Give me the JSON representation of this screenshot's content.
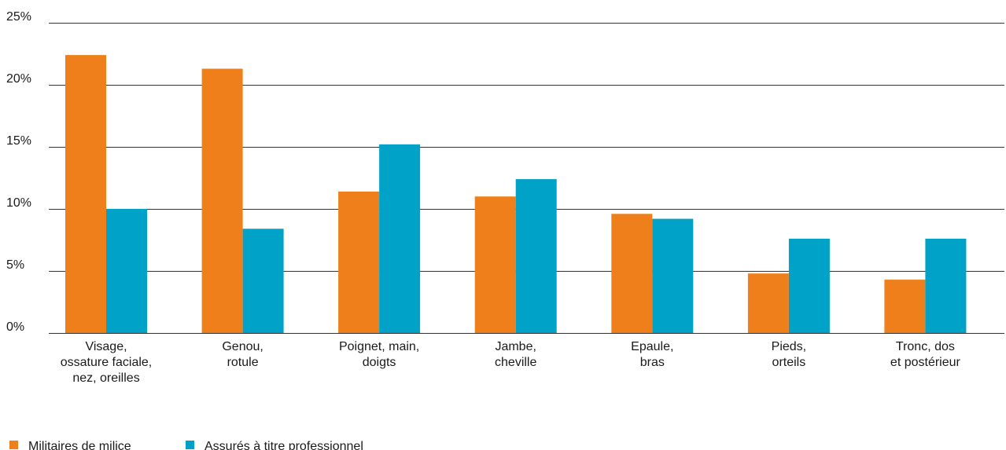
{
  "chart_data": {
    "type": "bar",
    "title": "",
    "xlabel": "",
    "ylabel": "",
    "ylim": [
      0,
      25
    ],
    "yticks": [
      0,
      5,
      10,
      15,
      20,
      25
    ],
    "ytick_labels": [
      "0%",
      "5%",
      "10%",
      "15%",
      "20%",
      "25%"
    ],
    "grid": true,
    "legend_position": "bottom-left",
    "categories": [
      [
        "Visage,",
        "ossature faciale,",
        "nez, oreilles"
      ],
      [
        "Genou,",
        "rotule"
      ],
      [
        "Poignet, main,",
        "doigts"
      ],
      [
        "Jambe,",
        "cheville"
      ],
      [
        "Epaule,",
        "bras"
      ],
      [
        "Pieds,",
        "orteils"
      ],
      [
        "Tronc, dos",
        "et postérieur"
      ]
    ],
    "series": [
      {
        "name": "Militaires de milice",
        "color": "#EE7F1A",
        "values": [
          22.4,
          21.3,
          11.4,
          11.0,
          9.6,
          4.8,
          4.3
        ]
      },
      {
        "name": "Assurés à titre professionnel",
        "color": "#00A3C7",
        "values": [
          10.0,
          8.4,
          15.2,
          12.4,
          9.2,
          7.6,
          7.6
        ]
      }
    ]
  }
}
